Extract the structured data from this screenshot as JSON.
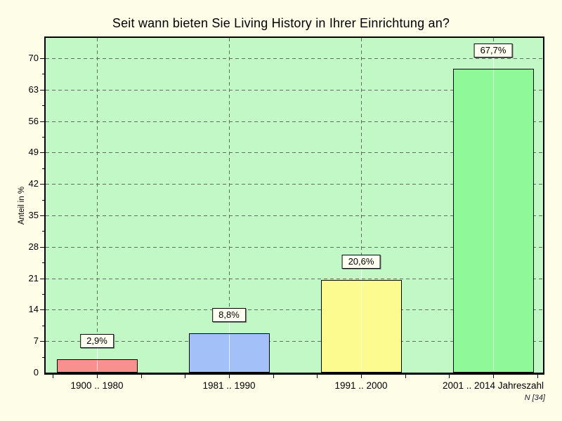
{
  "chart_data": {
    "type": "bar",
    "title": "Seit wann bieten Sie Living History in Ihrer Einrichtung an?",
    "xlabel": "",
    "ylabel": "Anteil in %",
    "categories": [
      "1900 .. 1980",
      "1981 .. 1990",
      "1991 .. 2000",
      "2001 .. 2014 Jahreszahl"
    ],
    "values": [
      2.9,
      8.8,
      20.6,
      67.7
    ],
    "value_labels": [
      "2,9%",
      "8,8%",
      "20,6%",
      "67,7%"
    ],
    "bar_colors": [
      "#f8908e",
      "#a4c0f8",
      "#fbfb8f",
      "#8ff898"
    ],
    "yticks": [
      0,
      7,
      14,
      21,
      28,
      35,
      42,
      49,
      56,
      63,
      70
    ],
    "ylim": [
      0,
      74.5
    ],
    "grid": true,
    "legend": false,
    "sample_note": "N [34]",
    "colors": {
      "page_bg": "#fdfde8",
      "plot_bg": "#c1f8c5",
      "grid": "#5f6f5f",
      "frame": "#000000",
      "label_box_bg": "#fffff2"
    }
  }
}
